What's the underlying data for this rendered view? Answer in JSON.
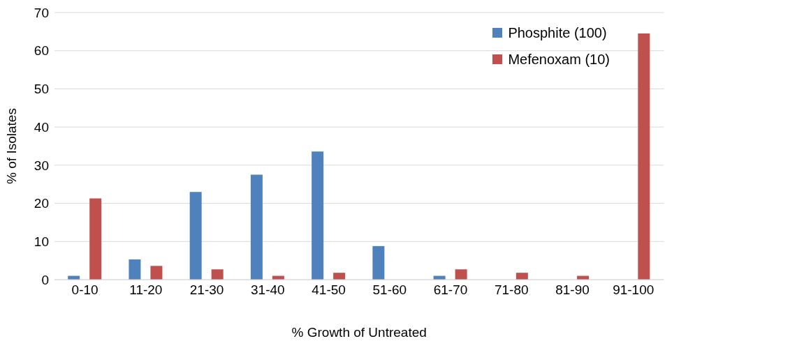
{
  "chart_data": {
    "type": "bar",
    "xlabel": "% Growth of Untreated",
    "ylabel": "% of Isolates",
    "categories": [
      "0-10",
      "11-20",
      "21-30",
      "31-40",
      "41-50",
      "51-60",
      "61-70",
      "71-80",
      "81-90",
      "91-100"
    ],
    "series": [
      {
        "name": "Phosphite (100)",
        "color": "#4f81bd",
        "values": [
          1,
          5.3,
          23,
          27.5,
          33.6,
          8.8,
          1,
          0,
          0,
          0
        ]
      },
      {
        "name": "Mefenoxam (10)",
        "color": "#c0504d",
        "values": [
          21.3,
          3.6,
          2.7,
          1,
          1.8,
          0,
          2.7,
          1.8,
          1,
          64.5
        ]
      }
    ],
    "ylim": [
      0,
      70
    ],
    "yticks": [
      0,
      10,
      20,
      30,
      40,
      50,
      60,
      70
    ],
    "grid": "y",
    "legend": "top right"
  }
}
